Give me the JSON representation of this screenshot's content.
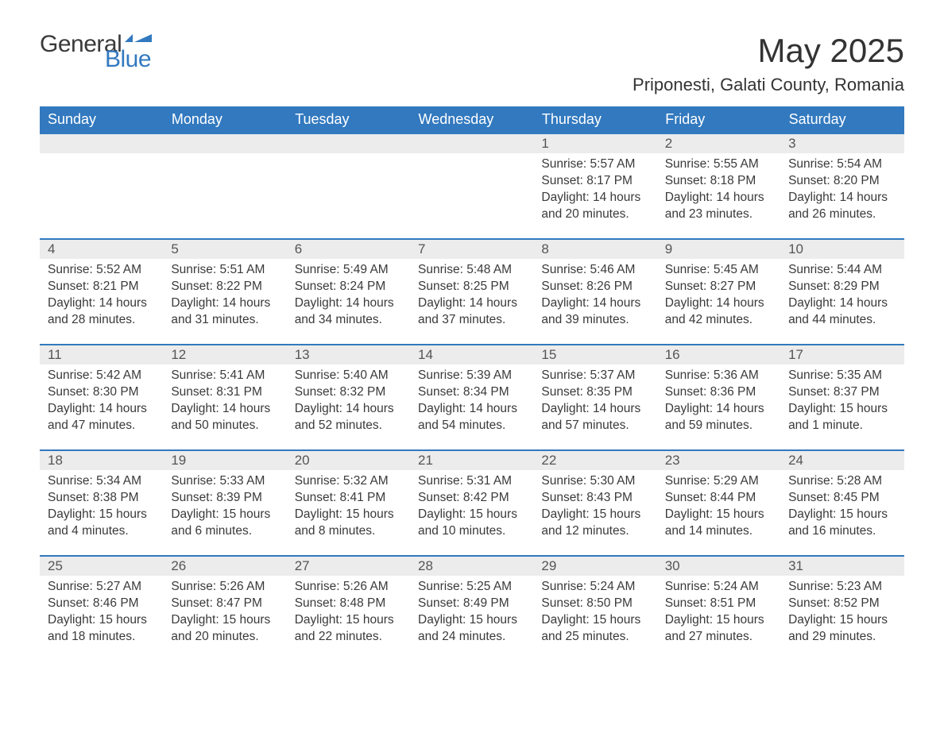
{
  "logo": {
    "general": "General",
    "blue": "Blue",
    "icon_color": "#3279bf"
  },
  "header": {
    "title": "May 2025",
    "location": "Priponesti, Galati County, Romania"
  },
  "colors": {
    "header_bg": "#3279bf",
    "header_text": "#ffffff",
    "daynum_bg": "#ececec",
    "row_border": "#3279bf",
    "body_text": "#3a3a3a",
    "background": "#ffffff"
  },
  "layout": {
    "type": "table",
    "columns": 7,
    "body_rows": 5,
    "daynum_fontsize": 17,
    "body_fontsize": 15.5,
    "header_fontsize": 18,
    "title_fontsize": 42,
    "location_fontsize": 22
  },
  "weekdays": [
    "Sunday",
    "Monday",
    "Tuesday",
    "Wednesday",
    "Thursday",
    "Friday",
    "Saturday"
  ],
  "weeks": [
    [
      {
        "day": "",
        "sunrise": "",
        "sunset": "",
        "daylight": ""
      },
      {
        "day": "",
        "sunrise": "",
        "sunset": "",
        "daylight": ""
      },
      {
        "day": "",
        "sunrise": "",
        "sunset": "",
        "daylight": ""
      },
      {
        "day": "",
        "sunrise": "",
        "sunset": "",
        "daylight": ""
      },
      {
        "day": "1",
        "sunrise": "Sunrise: 5:57 AM",
        "sunset": "Sunset: 8:17 PM",
        "daylight": "Daylight: 14 hours and 20 minutes."
      },
      {
        "day": "2",
        "sunrise": "Sunrise: 5:55 AM",
        "sunset": "Sunset: 8:18 PM",
        "daylight": "Daylight: 14 hours and 23 minutes."
      },
      {
        "day": "3",
        "sunrise": "Sunrise: 5:54 AM",
        "sunset": "Sunset: 8:20 PM",
        "daylight": "Daylight: 14 hours and 26 minutes."
      }
    ],
    [
      {
        "day": "4",
        "sunrise": "Sunrise: 5:52 AM",
        "sunset": "Sunset: 8:21 PM",
        "daylight": "Daylight: 14 hours and 28 minutes."
      },
      {
        "day": "5",
        "sunrise": "Sunrise: 5:51 AM",
        "sunset": "Sunset: 8:22 PM",
        "daylight": "Daylight: 14 hours and 31 minutes."
      },
      {
        "day": "6",
        "sunrise": "Sunrise: 5:49 AM",
        "sunset": "Sunset: 8:24 PM",
        "daylight": "Daylight: 14 hours and 34 minutes."
      },
      {
        "day": "7",
        "sunrise": "Sunrise: 5:48 AM",
        "sunset": "Sunset: 8:25 PM",
        "daylight": "Daylight: 14 hours and 37 minutes."
      },
      {
        "day": "8",
        "sunrise": "Sunrise: 5:46 AM",
        "sunset": "Sunset: 8:26 PM",
        "daylight": "Daylight: 14 hours and 39 minutes."
      },
      {
        "day": "9",
        "sunrise": "Sunrise: 5:45 AM",
        "sunset": "Sunset: 8:27 PM",
        "daylight": "Daylight: 14 hours and 42 minutes."
      },
      {
        "day": "10",
        "sunrise": "Sunrise: 5:44 AM",
        "sunset": "Sunset: 8:29 PM",
        "daylight": "Daylight: 14 hours and 44 minutes."
      }
    ],
    [
      {
        "day": "11",
        "sunrise": "Sunrise: 5:42 AM",
        "sunset": "Sunset: 8:30 PM",
        "daylight": "Daylight: 14 hours and 47 minutes."
      },
      {
        "day": "12",
        "sunrise": "Sunrise: 5:41 AM",
        "sunset": "Sunset: 8:31 PM",
        "daylight": "Daylight: 14 hours and 50 minutes."
      },
      {
        "day": "13",
        "sunrise": "Sunrise: 5:40 AM",
        "sunset": "Sunset: 8:32 PM",
        "daylight": "Daylight: 14 hours and 52 minutes."
      },
      {
        "day": "14",
        "sunrise": "Sunrise: 5:39 AM",
        "sunset": "Sunset: 8:34 PM",
        "daylight": "Daylight: 14 hours and 54 minutes."
      },
      {
        "day": "15",
        "sunrise": "Sunrise: 5:37 AM",
        "sunset": "Sunset: 8:35 PM",
        "daylight": "Daylight: 14 hours and 57 minutes."
      },
      {
        "day": "16",
        "sunrise": "Sunrise: 5:36 AM",
        "sunset": "Sunset: 8:36 PM",
        "daylight": "Daylight: 14 hours and 59 minutes."
      },
      {
        "day": "17",
        "sunrise": "Sunrise: 5:35 AM",
        "sunset": "Sunset: 8:37 PM",
        "daylight": "Daylight: 15 hours and 1 minute."
      }
    ],
    [
      {
        "day": "18",
        "sunrise": "Sunrise: 5:34 AM",
        "sunset": "Sunset: 8:38 PM",
        "daylight": "Daylight: 15 hours and 4 minutes."
      },
      {
        "day": "19",
        "sunrise": "Sunrise: 5:33 AM",
        "sunset": "Sunset: 8:39 PM",
        "daylight": "Daylight: 15 hours and 6 minutes."
      },
      {
        "day": "20",
        "sunrise": "Sunrise: 5:32 AM",
        "sunset": "Sunset: 8:41 PM",
        "daylight": "Daylight: 15 hours and 8 minutes."
      },
      {
        "day": "21",
        "sunrise": "Sunrise: 5:31 AM",
        "sunset": "Sunset: 8:42 PM",
        "daylight": "Daylight: 15 hours and 10 minutes."
      },
      {
        "day": "22",
        "sunrise": "Sunrise: 5:30 AM",
        "sunset": "Sunset: 8:43 PM",
        "daylight": "Daylight: 15 hours and 12 minutes."
      },
      {
        "day": "23",
        "sunrise": "Sunrise: 5:29 AM",
        "sunset": "Sunset: 8:44 PM",
        "daylight": "Daylight: 15 hours and 14 minutes."
      },
      {
        "day": "24",
        "sunrise": "Sunrise: 5:28 AM",
        "sunset": "Sunset: 8:45 PM",
        "daylight": "Daylight: 15 hours and 16 minutes."
      }
    ],
    [
      {
        "day": "25",
        "sunrise": "Sunrise: 5:27 AM",
        "sunset": "Sunset: 8:46 PM",
        "daylight": "Daylight: 15 hours and 18 minutes."
      },
      {
        "day": "26",
        "sunrise": "Sunrise: 5:26 AM",
        "sunset": "Sunset: 8:47 PM",
        "daylight": "Daylight: 15 hours and 20 minutes."
      },
      {
        "day": "27",
        "sunrise": "Sunrise: 5:26 AM",
        "sunset": "Sunset: 8:48 PM",
        "daylight": "Daylight: 15 hours and 22 minutes."
      },
      {
        "day": "28",
        "sunrise": "Sunrise: 5:25 AM",
        "sunset": "Sunset: 8:49 PM",
        "daylight": "Daylight: 15 hours and 24 minutes."
      },
      {
        "day": "29",
        "sunrise": "Sunrise: 5:24 AM",
        "sunset": "Sunset: 8:50 PM",
        "daylight": "Daylight: 15 hours and 25 minutes."
      },
      {
        "day": "30",
        "sunrise": "Sunrise: 5:24 AM",
        "sunset": "Sunset: 8:51 PM",
        "daylight": "Daylight: 15 hours and 27 minutes."
      },
      {
        "day": "31",
        "sunrise": "Sunrise: 5:23 AM",
        "sunset": "Sunset: 8:52 PM",
        "daylight": "Daylight: 15 hours and 29 minutes."
      }
    ]
  ]
}
